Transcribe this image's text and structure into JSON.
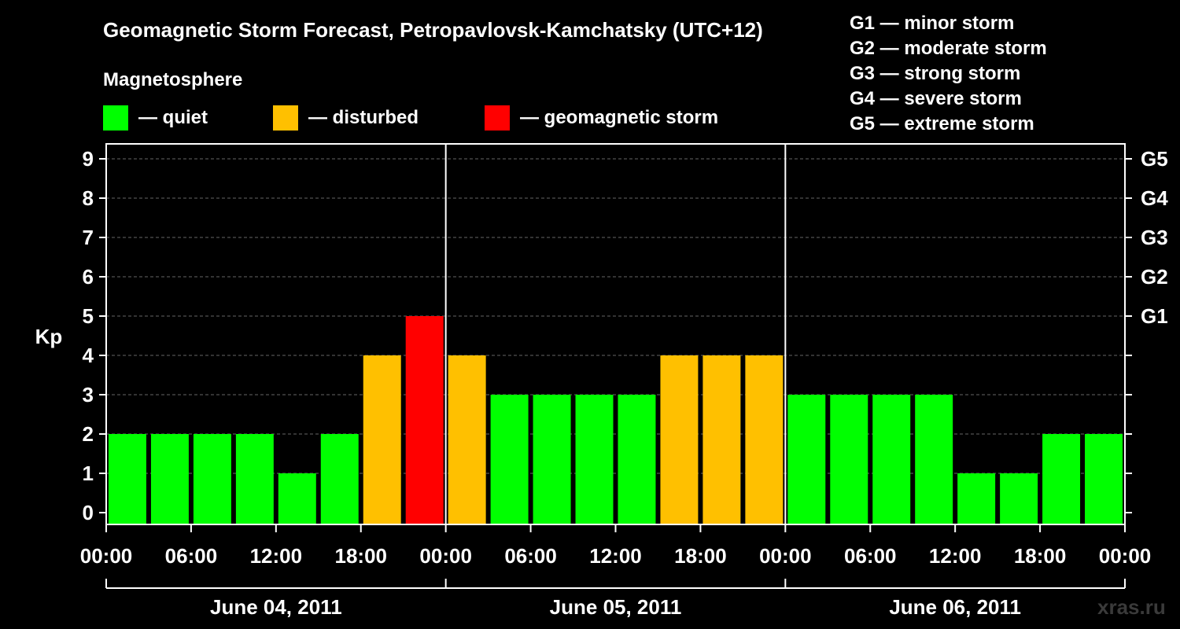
{
  "chart_data": {
    "type": "bar",
    "title": "Geomagnetic Storm Forecast, Petropavlovsk-Kamchatsky (UTC+12)",
    "ylabel": "Kp",
    "ylim": [
      0,
      9
    ],
    "yticks": [
      "0",
      "1",
      "2",
      "3",
      "4",
      "5",
      "6",
      "7",
      "8",
      "9"
    ],
    "xtick_labels": [
      "00:00",
      "06:00",
      "12:00",
      "18:00",
      "00:00",
      "06:00",
      "12:00",
      "18:00",
      "00:00",
      "06:00",
      "12:00",
      "18:00",
      "00:00"
    ],
    "days": [
      "June 04, 2011",
      "June 05, 2011",
      "June 06, 2011"
    ],
    "values": [
      2,
      2,
      2,
      2,
      1,
      2,
      4,
      5,
      4,
      3,
      3,
      3,
      3,
      4,
      4,
      4,
      3,
      3,
      3,
      3,
      1,
      1,
      2,
      2
    ],
    "status": [
      "quiet",
      "quiet",
      "quiet",
      "quiet",
      "quiet",
      "quiet",
      "disturbed",
      "storm",
      "disturbed",
      "quiet",
      "quiet",
      "quiet",
      "quiet",
      "disturbed",
      "disturbed",
      "disturbed",
      "quiet",
      "quiet",
      "quiet",
      "quiet",
      "quiet",
      "quiet",
      "quiet",
      "quiet"
    ],
    "grid": true,
    "g_levels": [
      {
        "label": "G1",
        "kp": 5
      },
      {
        "label": "G2",
        "kp": 6
      },
      {
        "label": "G3",
        "kp": 7
      },
      {
        "label": "G4",
        "kp": 8
      },
      {
        "label": "G5",
        "kp": 9
      }
    ]
  },
  "legend": {
    "heading": "Magnetosphere",
    "items": [
      {
        "key": "quiet",
        "label": "— quiet",
        "color": "#00ff00"
      },
      {
        "key": "disturbed",
        "label": "— disturbed",
        "color": "#ffc000"
      },
      {
        "key": "storm",
        "label": "— geomagnetic storm",
        "color": "#ff0000"
      }
    ]
  },
  "storm_scale": [
    "G1 — minor storm",
    "G2 — moderate storm",
    "G3 — strong storm",
    "G4 — severe storm",
    "G5 — extreme storm"
  ],
  "watermark": "xras.ru"
}
